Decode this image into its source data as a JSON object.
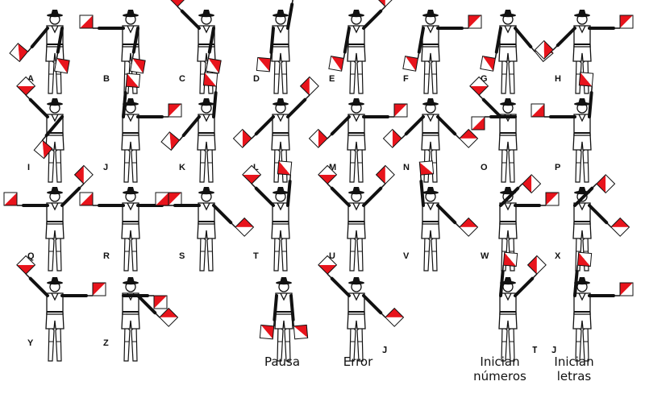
{
  "colors": {
    "flag_red": "#e8141c",
    "flag_white": "#ffffff",
    "ink": "#111111"
  },
  "signals": [
    {
      "label": "A",
      "left": [
        -40,
        "low"
      ],
      "right": [
        -10,
        "low"
      ]
    },
    {
      "label": "B",
      "left": [
        -90,
        "side"
      ],
      "right": [
        -10,
        "low"
      ]
    },
    {
      "label": "C",
      "left": [
        -135,
        "up"
      ],
      "right": [
        -10,
        "low"
      ]
    },
    {
      "label": "D",
      "left": [
        -5,
        "down"
      ],
      "right": [
        170,
        "up"
      ]
    },
    {
      "label": "E",
      "left": [
        -10,
        "low"
      ],
      "right": [
        135,
        "up"
      ]
    },
    {
      "label": "F",
      "left": [
        -10,
        "low"
      ],
      "right": [
        90,
        "side"
      ]
    },
    {
      "label": "G",
      "left": [
        -10,
        "low"
      ],
      "right": [
        40,
        "low"
      ]
    },
    {
      "label": "H",
      "left": [
        -45,
        "low"
      ],
      "right": [
        90,
        "side"
      ]
    },
    {
      "label": "I",
      "left": [
        -135,
        "up"
      ],
      "right": [
        -40,
        "low"
      ]
    },
    {
      "label": "J",
      "left": [
        175,
        "up"
      ],
      "right": [
        90,
        "side"
      ]
    },
    {
      "label": "K",
      "left": [
        -40,
        "low"
      ],
      "right": [
        175,
        "up"
      ]
    },
    {
      "label": "L",
      "left": [
        -45,
        "low"
      ],
      "right": [
        135,
        "up"
      ]
    },
    {
      "label": "M",
      "left": [
        -45,
        "low"
      ],
      "right": [
        90,
        "side"
      ]
    },
    {
      "label": "N",
      "left": [
        -45,
        "low"
      ],
      "right": [
        45,
        "low"
      ]
    },
    {
      "label": "O",
      "left": [
        -135,
        "up"
      ],
      "right": [
        -90,
        "side"
      ]
    },
    {
      "label": "P",
      "left": [
        -90,
        "side"
      ],
      "right": [
        175,
        "up"
      ]
    },
    {
      "label": "Q",
      "left": [
        -90,
        "side"
      ],
      "right": [
        135,
        "up"
      ]
    },
    {
      "label": "R",
      "left": [
        -90,
        "side"
      ],
      "right": [
        90,
        "side"
      ]
    },
    {
      "label": "S",
      "left": [
        -90,
        "side"
      ],
      "right": [
        45,
        "low"
      ]
    },
    {
      "label": "T",
      "left": [
        -135,
        "up"
      ],
      "right": [
        175,
        "up"
      ]
    },
    {
      "label": "U",
      "left": [
        -135,
        "up"
      ],
      "right": [
        135,
        "up"
      ]
    },
    {
      "label": "V",
      "left": [
        -175,
        "up"
      ],
      "right": [
        45,
        "low"
      ]
    },
    {
      "label": "W",
      "left": [
        135,
        "up"
      ],
      "right": [
        90,
        "side"
      ]
    },
    {
      "label": "X",
      "left": [
        135,
        "up"
      ],
      "right": [
        45,
        "low"
      ]
    },
    {
      "label": "Y",
      "left": [
        -135,
        "up"
      ],
      "right": [
        90,
        "side"
      ]
    },
    {
      "label": "Z",
      "left": [
        90,
        "side"
      ],
      "right": [
        45,
        "low"
      ]
    }
  ],
  "specials": [
    {
      "caption": "Pausa",
      "tag": "",
      "left": [
        -5,
        "down"
      ],
      "right": [
        5,
        "down"
      ]
    },
    {
      "caption": "Error",
      "tag": "J",
      "left": [
        -135,
        "up"
      ],
      "right": [
        45,
        "low"
      ]
    },
    {
      "caption": "Inician números",
      "caption_lines": [
        "Inician",
        "números"
      ],
      "tag": "T",
      "left": [
        175,
        "up"
      ],
      "right": [
        135,
        "up"
      ]
    },
    {
      "caption": "Inician letras",
      "caption_lines": [
        "Inician",
        "letras"
      ],
      "tag": "J",
      "left": [
        175,
        "up"
      ],
      "right": [
        90,
        "side"
      ]
    }
  ]
}
